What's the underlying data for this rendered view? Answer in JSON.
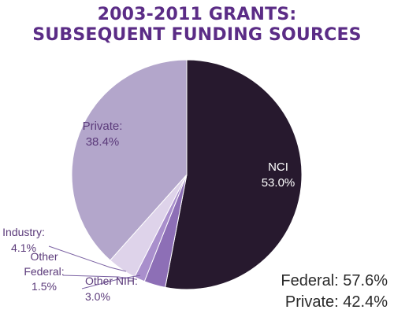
{
  "title_lines": [
    "2003-2011 GRANTS:",
    "SUBSEQUENT FUNDING SOURCES"
  ],
  "chart_data": {
    "type": "pie",
    "title": "2003-2011 GRANTS: SUBSEQUENT FUNDING SOURCES",
    "slices": [
      {
        "label_lines": [
          "NCI",
          "53.0%"
        ],
        "name": "NCI",
        "value": 53.0,
        "color": "#27192e"
      },
      {
        "label_lines": [
          "Other NIH:",
          "3.0%"
        ],
        "name": "Other NIH",
        "value": 3.0,
        "color": "#8d6fb6"
      },
      {
        "label_lines": [
          "Other",
          "Federal:",
          "1.5%"
        ],
        "name": "Other Federal",
        "value": 1.5,
        "color": "#a98fcc"
      },
      {
        "label_lines": [
          "Industry:",
          "4.1%"
        ],
        "name": "Industry",
        "value": 4.1,
        "color": "#ded3ea"
      },
      {
        "label_lines": [
          "Private:",
          "38.4%"
        ],
        "name": "Private",
        "value": 38.4,
        "color": "#b3a6cb"
      }
    ]
  },
  "summary": {
    "federal": "Federal: 57.6%",
    "private": "Private: 42.4%"
  },
  "colors": {
    "title": "#5b2c86",
    "label_inside_dark": "#ffffff",
    "label_outside": "#5b3a7a",
    "leader_line": "#7b62a3"
  }
}
